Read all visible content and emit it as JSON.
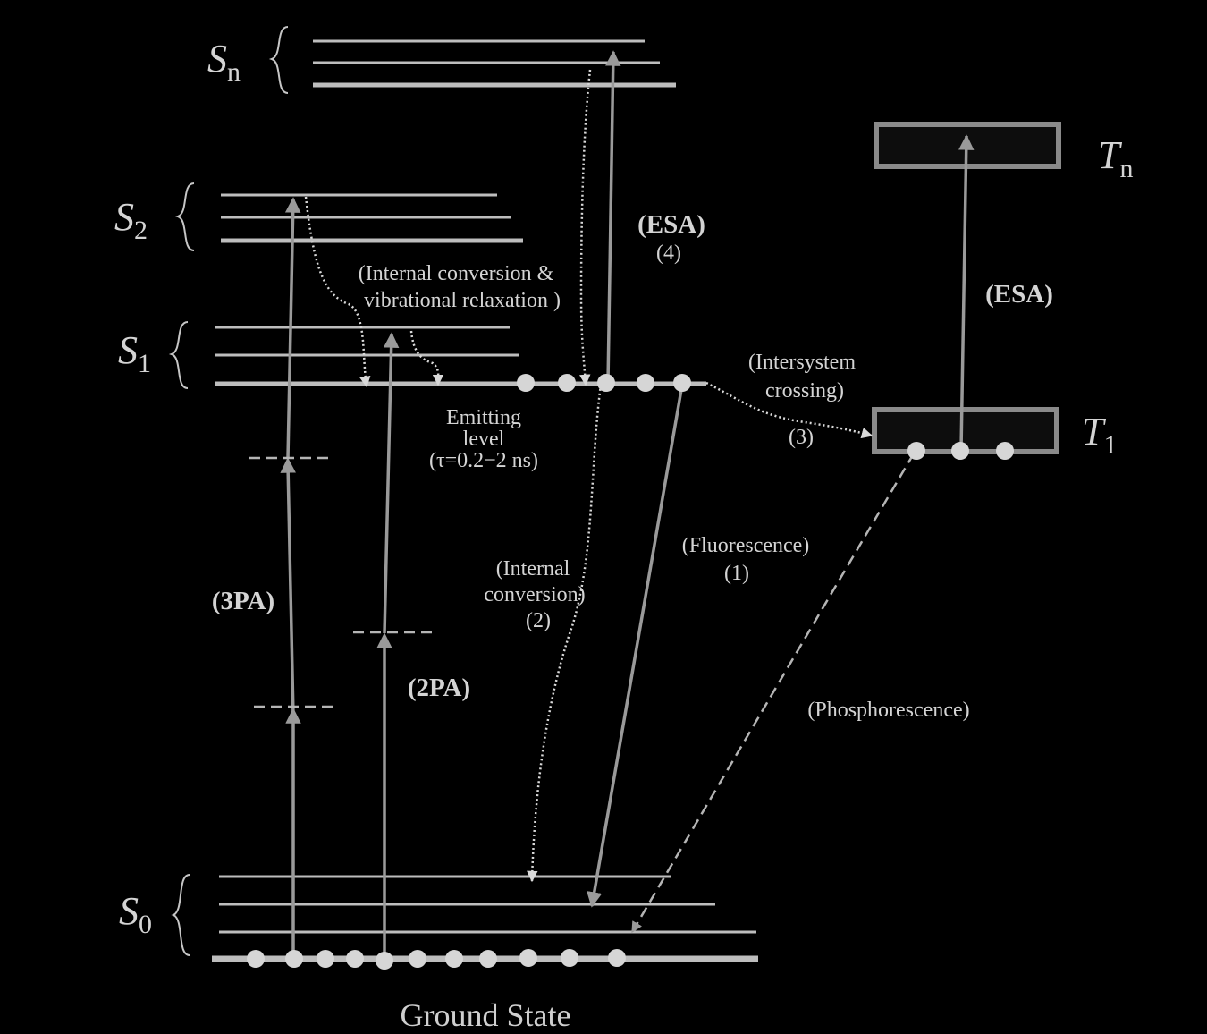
{
  "states": {
    "sn": {
      "main": "S",
      "sub": "n"
    },
    "s2": {
      "main": "S",
      "sub": "2"
    },
    "s1": {
      "main": "S",
      "sub": "1"
    },
    "s0": {
      "main": "S",
      "sub": "0"
    },
    "tn": {
      "main": "T",
      "sub": "n"
    },
    "t1": {
      "main": "T",
      "sub": "1"
    }
  },
  "labels": {
    "esa_singlet": "(ESA)",
    "esa_singlet_num": "(4)",
    "esa_triplet": "(ESA)",
    "ic_vr_line1": "(Internal conversion &",
    "ic_vr_line2": "vibrational relaxation )",
    "isc_line1": "(Intersystem",
    "isc_line2": "crossing)",
    "isc_num": "(3)",
    "emitting_line1": "Emitting",
    "emitting_line2": "level",
    "emitting_line3": "(τ=0.2−2 ns)",
    "fluor_line1": "(Fluorescence)",
    "fluor_num": "(1)",
    "ic_line1": "(Internal",
    "ic_line2": "conversion)",
    "ic_num": "(2)",
    "three_pa": "(3PA)",
    "two_pa": "(2PA)",
    "phos": "(Phosphorescence)",
    "ground": "Ground State"
  },
  "colors": {
    "background": "#000000",
    "levels": "#bdbdbd",
    "arrows": "#9a9a9a",
    "text": "#d4d4d4",
    "triplet_fill": "#0d0d0d"
  }
}
